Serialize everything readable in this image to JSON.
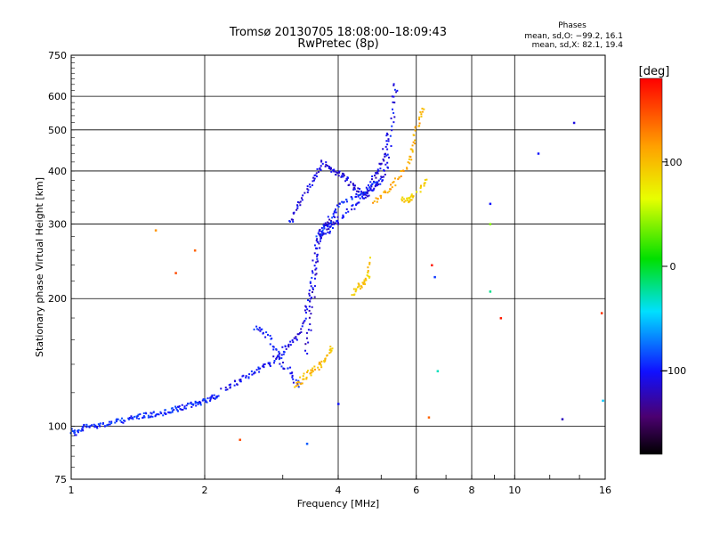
{
  "chart_data": {
    "type": "scatter",
    "title": "Tromsø 20130705 18:08:00–18:09:43",
    "subtitle": "RwPretec (8p)",
    "xlabel": "Frequency [MHz]",
    "ylabel": "Stationary phase Virtual Height [km]",
    "x_scale": "log",
    "y_scale": "log",
    "xlim": [
      1,
      16
    ],
    "ylim": [
      75,
      750
    ],
    "x_ticks": [
      1,
      2,
      4,
      6,
      8,
      10,
      16
    ],
    "x_tick_labels": [
      "1",
      "2",
      "4",
      "6",
      "8",
      "10",
      "16"
    ],
    "y_ticks": [
      75,
      100,
      200,
      300,
      400,
      500,
      600,
      750
    ],
    "y_tick_labels": [
      "75",
      "100",
      "200",
      "300",
      "400",
      "500",
      "600",
      "750"
    ],
    "grid": true,
    "stats_title": "Phases",
    "stats_lines": [
      "mean, sd,O: −99.2, 16.1",
      "mean, sd,X:  82.1, 19.4"
    ],
    "colorbar": {
      "label": "[deg]",
      "range": [
        -180,
        180
      ],
      "ticks": [
        100,
        0,
        -100
      ],
      "tick_labels": [
        "100",
        "0",
        "−100"
      ],
      "colormap": "rainbow-black-to-red"
    },
    "traces": [
      {
        "phase": -95,
        "points": [
          [
            1.0,
            98
          ],
          [
            1.02,
            96
          ],
          [
            1.05,
            98
          ],
          [
            1.08,
            100
          ],
          [
            1.12,
            100
          ],
          [
            1.16,
            101
          ],
          [
            1.2,
            101
          ],
          [
            1.25,
            102
          ],
          [
            1.3,
            103
          ],
          [
            1.35,
            104
          ],
          [
            1.4,
            105
          ],
          [
            1.45,
            106
          ],
          [
            1.5,
            106
          ],
          [
            1.55,
            107
          ],
          [
            1.6,
            107
          ],
          [
            1.65,
            108
          ],
          [
            1.7,
            109
          ],
          [
            1.75,
            110
          ],
          [
            1.8,
            111
          ],
          [
            1.85,
            112
          ],
          [
            1.9,
            113
          ],
          [
            1.95,
            114
          ],
          [
            2.0,
            115
          ],
          [
            2.05,
            116
          ],
          [
            2.1,
            117
          ],
          [
            2.15,
            118
          ]
        ]
      },
      {
        "phase": -105,
        "points": [
          [
            2.2,
            122
          ],
          [
            2.3,
            125
          ],
          [
            2.4,
            128
          ],
          [
            2.5,
            132
          ],
          [
            2.6,
            135
          ],
          [
            2.7,
            138
          ],
          [
            2.8,
            140
          ],
          [
            2.9,
            145
          ],
          [
            3.0,
            150
          ],
          [
            3.1,
            155
          ],
          [
            3.2,
            160
          ],
          [
            3.3,
            170
          ],
          [
            3.4,
            185
          ],
          [
            3.45,
            200
          ],
          [
            3.5,
            220
          ],
          [
            3.55,
            250
          ],
          [
            3.6,
            275
          ],
          [
            3.7,
            285
          ],
          [
            3.8,
            290
          ],
          [
            3.9,
            300
          ],
          [
            4.0,
            305
          ],
          [
            4.2,
            320
          ],
          [
            4.4,
            335
          ],
          [
            4.6,
            350
          ],
          [
            4.8,
            365
          ],
          [
            5.0,
            380
          ],
          [
            5.1,
            400
          ],
          [
            5.2,
            440
          ],
          [
            5.3,
            520
          ],
          [
            5.35,
            600
          ],
          [
            5.4,
            640
          ]
        ]
      },
      {
        "phase": -100,
        "points": [
          [
            2.6,
            170
          ],
          [
            2.7,
            168
          ],
          [
            2.8,
            160
          ],
          [
            2.9,
            150
          ],
          [
            3.0,
            140
          ],
          [
            3.1,
            135
          ],
          [
            3.2,
            128
          ],
          [
            3.3,
            125
          ]
        ]
      },
      {
        "phase": -110,
        "points": [
          [
            3.1,
            300
          ],
          [
            3.2,
            320
          ],
          [
            3.3,
            340
          ],
          [
            3.4,
            360
          ],
          [
            3.5,
            380
          ],
          [
            3.6,
            400
          ],
          [
            3.7,
            420
          ],
          [
            3.8,
            410
          ],
          [
            3.9,
            400
          ],
          [
            4.0,
            395
          ],
          [
            4.1,
            390
          ],
          [
            4.2,
            380
          ],
          [
            4.3,
            370
          ],
          [
            4.4,
            360
          ],
          [
            4.5,
            355
          ],
          [
            4.6,
            350
          ],
          [
            4.7,
            360
          ],
          [
            4.8,
            380
          ],
          [
            4.9,
            400
          ],
          [
            5.0,
            420
          ],
          [
            5.1,
            450
          ],
          [
            5.2,
            500
          ]
        ]
      },
      {
        "phase": -115,
        "points": [
          [
            3.4,
            150
          ],
          [
            3.45,
            170
          ],
          [
            3.5,
            200
          ],
          [
            3.55,
            230
          ],
          [
            3.6,
            260
          ],
          [
            3.65,
            285
          ],
          [
            3.7,
            295
          ],
          [
            3.8,
            300
          ],
          [
            3.9,
            310
          ]
        ]
      },
      {
        "phase": -95,
        "points": [
          [
            3.6,
            280
          ],
          [
            3.7,
            290
          ],
          [
            3.8,
            300
          ],
          [
            3.9,
            320
          ],
          [
            4.0,
            330
          ],
          [
            4.2,
            340
          ],
          [
            4.4,
            350
          ],
          [
            4.6,
            360
          ],
          [
            4.8,
            370
          ],
          [
            5.0,
            380
          ]
        ]
      },
      {
        "phase": 100,
        "points": [
          [
            3.2,
            125
          ],
          [
            3.3,
            128
          ],
          [
            3.4,
            132
          ],
          [
            3.5,
            135
          ],
          [
            3.6,
            138
          ],
          [
            3.7,
            142
          ],
          [
            3.8,
            148
          ],
          [
            3.9,
            155
          ]
        ]
      },
      {
        "phase": 95,
        "points": [
          [
            4.3,
            205
          ],
          [
            4.4,
            210
          ],
          [
            4.5,
            215
          ],
          [
            4.6,
            220
          ],
          [
            4.7,
            230
          ],
          [
            4.75,
            250
          ]
        ]
      },
      {
        "phase": 110,
        "points": [
          [
            4.8,
            340
          ],
          [
            5.0,
            350
          ],
          [
            5.2,
            360
          ],
          [
            5.4,
            380
          ],
          [
            5.6,
            400
          ],
          [
            5.8,
            430
          ],
          [
            5.9,
            460
          ],
          [
            6.0,
            500
          ],
          [
            6.1,
            540
          ],
          [
            6.2,
            570
          ]
        ]
      },
      {
        "phase": 90,
        "points": [
          [
            5.6,
            345
          ],
          [
            5.7,
            340
          ],
          [
            5.8,
            345
          ],
          [
            5.9,
            350
          ],
          [
            6.2,
            370
          ],
          [
            6.3,
            380
          ]
        ]
      }
    ],
    "isolated_points": [
      {
        "x": 1.55,
        "y": 290,
        "phase": 120
      },
      {
        "x": 1.72,
        "y": 230,
        "phase": 150
      },
      {
        "x": 1.9,
        "y": 260,
        "phase": 140
      },
      {
        "x": 2.4,
        "y": 93,
        "phase": 150
      },
      {
        "x": 3.4,
        "y": 91,
        "phase": -80
      },
      {
        "x": 4.0,
        "y": 113,
        "phase": -100
      },
      {
        "x": 6.4,
        "y": 105,
        "phase": 140
      },
      {
        "x": 6.5,
        "y": 240,
        "phase": 170
      },
      {
        "x": 6.6,
        "y": 225,
        "phase": -90
      },
      {
        "x": 6.7,
        "y": 135,
        "phase": -30
      },
      {
        "x": 8.8,
        "y": 335,
        "phase": -100
      },
      {
        "x": 8.8,
        "y": 300,
        "phase": 40
      },
      {
        "x": 8.8,
        "y": 208,
        "phase": -20
      },
      {
        "x": 9.3,
        "y": 180,
        "phase": 170
      },
      {
        "x": 11.3,
        "y": 440,
        "phase": -100
      },
      {
        "x": 12.8,
        "y": 104,
        "phase": -120
      },
      {
        "x": 13.6,
        "y": 520,
        "phase": -110
      },
      {
        "x": 15.7,
        "y": 185,
        "phase": 160
      },
      {
        "x": 15.8,
        "y": 115,
        "phase": -50
      }
    ]
  }
}
